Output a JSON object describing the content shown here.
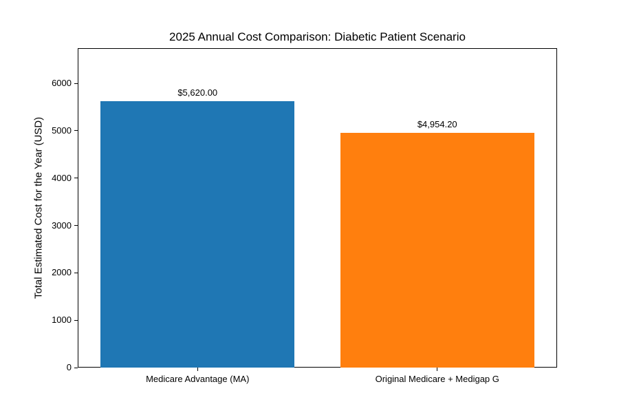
{
  "figure": {
    "background": "#ffffff",
    "frame_color": "#000000"
  },
  "chart_data": {
    "type": "bar",
    "title": "2025 Annual Cost Comparison: Diabetic Patient Scenario",
    "xlabel": "",
    "ylabel": "Total Estimated Cost for the Year (USD)",
    "categories": [
      "Medicare Advantage (MA)",
      "Original Medicare + Medigap G"
    ],
    "values": [
      5620.0,
      4954.2
    ],
    "value_labels": [
      "$5,620.00",
      "$4,954.20"
    ],
    "bar_colors": [
      "#1f77b4",
      "#ff7f0e"
    ],
    "yticks": [
      0,
      1000,
      2000,
      3000,
      4000,
      5000,
      6000
    ],
    "ylim": [
      0,
      6744
    ],
    "xlim_units": 1.98,
    "bar_width_units": 0.8,
    "grid": false,
    "legend": "none",
    "axis_color": "#000000",
    "text_color": "#000000"
  }
}
